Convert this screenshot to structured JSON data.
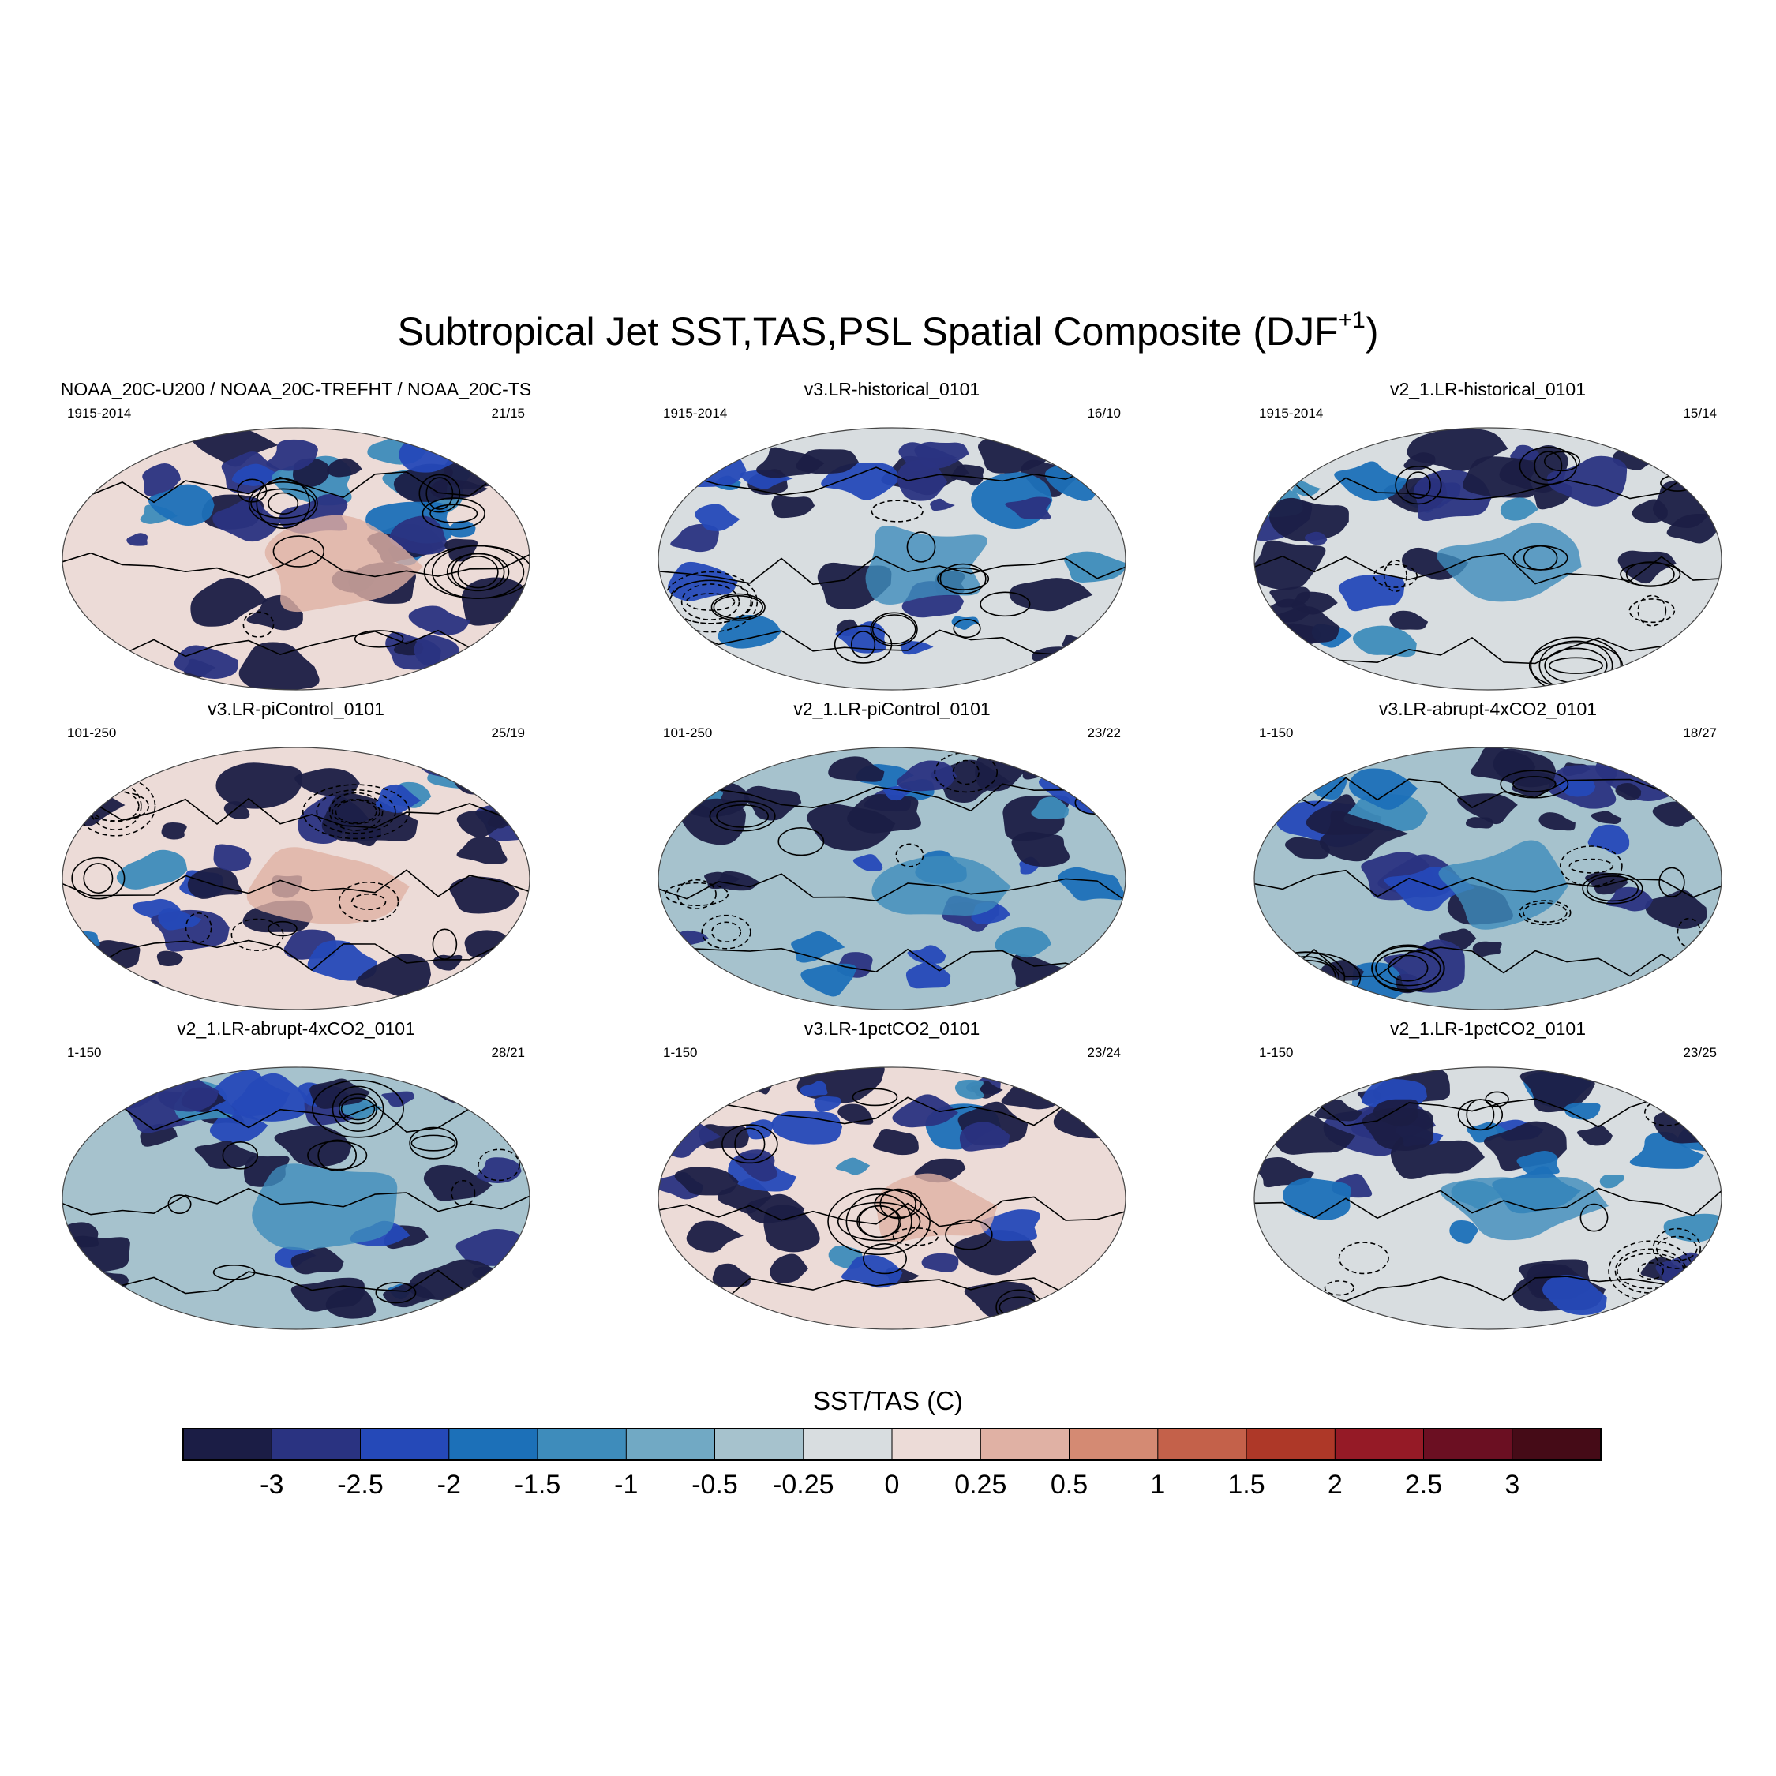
{
  "figure": {
    "title_main": "Subtropical Jet SST,TAS,PSL Spatial Composite (DJF",
    "title_sup": "+1",
    "title_close": ")"
  },
  "panels": [
    {
      "title": "NOAA_20C-U200 / NOAA_20C-TREFHT / NOAA_20C-TS",
      "years": "1915-2014",
      "count": "21/15",
      "tone": "warm",
      "seed": 11
    },
    {
      "title": "v3.LR-historical_0101",
      "years": "1915-2014",
      "count": "16/10",
      "tone": "mixed",
      "seed": 23
    },
    {
      "title": "v2_1.LR-historical_0101",
      "years": "1915-2014",
      "count": "15/14",
      "tone": "mixed",
      "seed": 37
    },
    {
      "title": "v3.LR-piControl_0101",
      "years": "101-250",
      "count": "25/19",
      "tone": "warm",
      "seed": 41
    },
    {
      "title": "v2_1.LR-piControl_0101",
      "years": "101-250",
      "count": "23/22",
      "tone": "cool",
      "seed": 53
    },
    {
      "title": "v3.LR-abrupt-4xCO2_0101",
      "years": "1-150",
      "count": "18/27",
      "tone": "cool",
      "seed": 67
    },
    {
      "title": "v2_1.LR-abrupt-4xCO2_0101",
      "years": "1-150",
      "count": "28/21",
      "tone": "cool",
      "seed": 71
    },
    {
      "title": "v3.LR-1pctCO2_0101",
      "years": "1-150",
      "count": "23/24",
      "tone": "warm",
      "seed": 83
    },
    {
      "title": "v2_1.LR-1pctCO2_0101",
      "years": "1-150",
      "count": "23/25",
      "tone": "mixed",
      "seed": 97
    }
  ],
  "chart_data": {
    "type": "heatmap",
    "projection": "Robinson global map",
    "title": "Subtropical Jet SST,TAS,PSL Spatial Composite (DJF+1)",
    "variables": [
      "SST/TAS (shaded)",
      "PSL (contours)"
    ],
    "colorbar": {
      "label": "SST/TAS (C)",
      "levels": [
        "-3",
        "-2.5",
        "-2",
        "-1.5",
        "-1",
        "-0.5",
        "-0.25",
        "0",
        "0.25",
        "0.5",
        "1",
        "1.5",
        "2",
        "2.5",
        "3"
      ],
      "colors": [
        "#1b1d45",
        "#2a3381",
        "#2549b8",
        "#1c70b8",
        "#3e8cbb",
        "#71a9c4",
        "#a6c2cd",
        "#d8dde0",
        "#ecdbd7",
        "#e0b1a4",
        "#d48a73",
        "#c4614a",
        "#ae3828",
        "#951a26",
        "#6b0f22",
        "#450b17"
      ]
    },
    "panels": [
      {
        "name": "NOAA_20C-U200 / NOAA_20C-TREFHT / NOAA_20C-TS",
        "period": "1915-2014",
        "count": "21/15"
      },
      {
        "name": "v3.LR-historical_0101",
        "period": "1915-2014",
        "count": "16/10"
      },
      {
        "name": "v2_1.LR-historical_0101",
        "period": "1915-2014",
        "count": "15/14"
      },
      {
        "name": "v3.LR-piControl_0101",
        "period": "101-250",
        "count": "25/19"
      },
      {
        "name": "v2_1.LR-piControl_0101",
        "period": "101-250",
        "count": "23/22"
      },
      {
        "name": "v3.LR-abrupt-4xCO2_0101",
        "period": "1-150",
        "count": "18/27"
      },
      {
        "name": "v2_1.LR-abrupt-4xCO2_0101",
        "period": "1-150",
        "count": "28/21"
      },
      {
        "name": "v3.LR-1pctCO2_0101",
        "period": "1-150",
        "count": "23/24"
      },
      {
        "name": "v2_1.LR-1pctCO2_0101",
        "period": "1-150",
        "count": "23/25"
      }
    ]
  }
}
